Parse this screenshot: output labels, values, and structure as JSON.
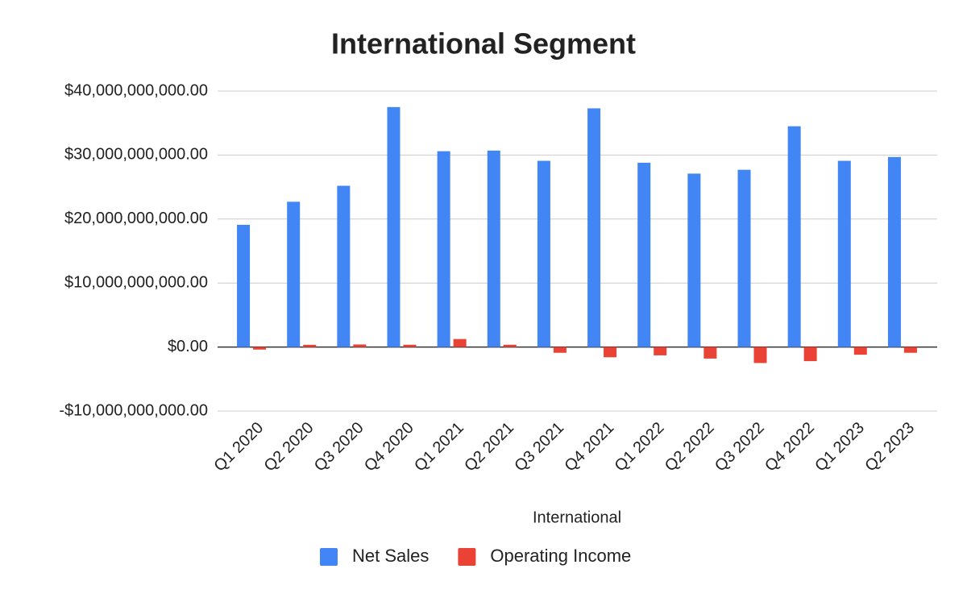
{
  "chart_data": {
    "type": "bar",
    "title": "International Segment",
    "x_label": "International",
    "categories": [
      "Q1 2020",
      "Q2 2020",
      "Q3 2020",
      "Q4 2020",
      "Q1 2021",
      "Q2 2021",
      "Q3 2021",
      "Q4 2021",
      "Q1 2022",
      "Q2 2022",
      "Q3 2022",
      "Q4 2022",
      "Q1 2023",
      "Q2 2023"
    ],
    "series": [
      {
        "name": "Net Sales",
        "color": "#4285f4",
        "values": [
          19100000000.0,
          22700000000.0,
          25200000000.0,
          37500000000.0,
          30600000000.0,
          30700000000.0,
          29100000000.0,
          37300000000.0,
          28800000000.0,
          27100000000.0,
          27700000000.0,
          34500000000.0,
          29100000000.0,
          29700000000.0
        ]
      },
      {
        "name": "Operating Income",
        "color": "#ea4335",
        "values": [
          -400000000.0,
          350000000.0,
          400000000.0,
          360000000.0,
          1250000000.0,
          360000000.0,
          -900000000.0,
          -1600000000.0,
          -1300000000.0,
          -1800000000.0,
          -2500000000.0,
          -2200000000.0,
          -1200000000.0,
          -900000000.0
        ]
      }
    ],
    "ylim": [
      -10000000000,
      40000000000
    ],
    "yticks": [
      {
        "value": -10000000000,
        "label": "-$10,000,000,000.00"
      },
      {
        "value": 0,
        "label": "$0.00"
      },
      {
        "value": 10000000000,
        "label": "$10,000,000,000.00"
      },
      {
        "value": 20000000000,
        "label": "$20,000,000,000.00"
      },
      {
        "value": 30000000000,
        "label": "$30,000,000,000.00"
      },
      {
        "value": 40000000000,
        "label": "$40,000,000,000.00"
      }
    ],
    "grid": true,
    "legend": "bottom"
  }
}
